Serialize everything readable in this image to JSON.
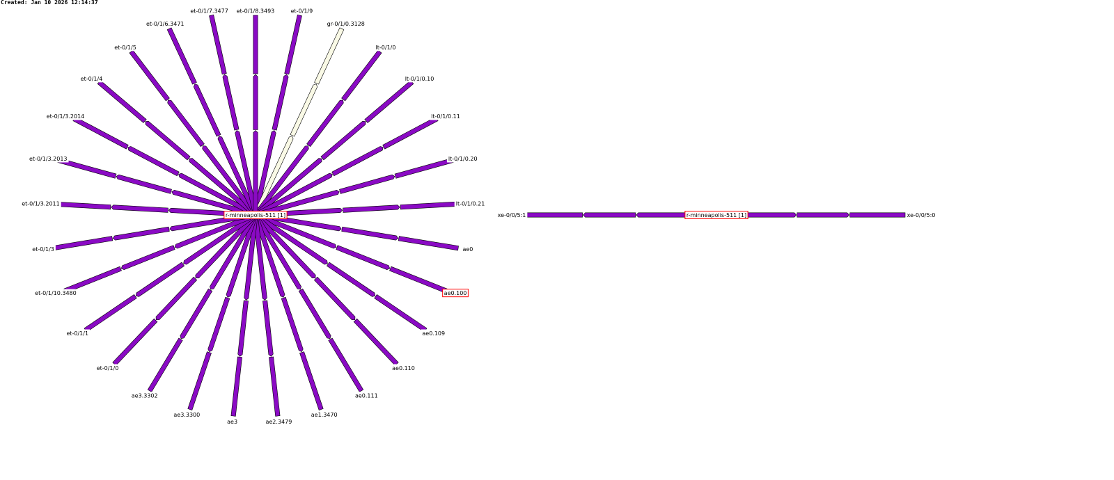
{
  "header": {
    "created_label": "Created: Jan 10 2026 12:14:37"
  },
  "colors": {
    "link_normal": "#8a0ac4",
    "link_idle": "#fafae6",
    "link_outline": "#000000",
    "highlight_border": "#ff0000"
  },
  "hub1": {
    "label": "r-minneapolis-511 [1]",
    "interfaces": [
      {
        "name": "et-0/1/9",
        "state": "normal",
        "highlighted": false
      },
      {
        "name": "gr-0/1/0.3128",
        "state": "idle",
        "highlighted": false
      },
      {
        "name": "lt-0/1/0",
        "state": "normal",
        "highlighted": false
      },
      {
        "name": "lt-0/1/0.10",
        "state": "normal",
        "highlighted": false
      },
      {
        "name": "lt-0/1/0.11",
        "state": "normal",
        "highlighted": false
      },
      {
        "name": "lt-0/1/0.20",
        "state": "normal",
        "highlighted": false
      },
      {
        "name": "lt-0/1/0.21",
        "state": "normal",
        "highlighted": false
      },
      {
        "name": "ae0",
        "state": "normal",
        "highlighted": false
      },
      {
        "name": "ae0.100",
        "state": "normal",
        "highlighted": true
      },
      {
        "name": "ae0.109",
        "state": "normal",
        "highlighted": false
      },
      {
        "name": "ae0.110",
        "state": "normal",
        "highlighted": false
      },
      {
        "name": "ae0.111",
        "state": "normal",
        "highlighted": false
      },
      {
        "name": "ae1.3470",
        "state": "normal",
        "highlighted": false
      },
      {
        "name": "ae2.3479",
        "state": "normal",
        "highlighted": false
      },
      {
        "name": "ae3",
        "state": "normal",
        "highlighted": false
      },
      {
        "name": "ae3.3300",
        "state": "normal",
        "highlighted": false
      },
      {
        "name": "ae3.3302",
        "state": "normal",
        "highlighted": false
      },
      {
        "name": "et-0/1/0",
        "state": "normal",
        "highlighted": false
      },
      {
        "name": "et-0/1/1",
        "state": "normal",
        "highlighted": false
      },
      {
        "name": "et-0/1/10.3480",
        "state": "normal",
        "highlighted": false
      },
      {
        "name": "et-0/1/3",
        "state": "normal",
        "highlighted": false
      },
      {
        "name": "et-0/1/3.2011",
        "state": "normal",
        "highlighted": false
      },
      {
        "name": "et-0/1/3.2013",
        "state": "normal",
        "highlighted": false
      },
      {
        "name": "et-0/1/3.2014",
        "state": "normal",
        "highlighted": false
      },
      {
        "name": "et-0/1/4",
        "state": "normal",
        "highlighted": false
      },
      {
        "name": "et-0/1/5",
        "state": "normal",
        "highlighted": false
      },
      {
        "name": "et-0/1/6.3471",
        "state": "normal",
        "highlighted": false
      },
      {
        "name": "et-0/1/7.3477",
        "state": "normal",
        "highlighted": false
      },
      {
        "name": "et-0/1/8.3493",
        "state": "normal",
        "highlighted": false
      }
    ]
  },
  "hub2": {
    "label": "r-minneapolis-511 [1]",
    "interfaces": [
      {
        "name": "xe-0/0/5:1",
        "state": "normal",
        "highlighted": false
      },
      {
        "name": "xe-0/0/5:0",
        "state": "normal",
        "highlighted": false
      }
    ]
  }
}
